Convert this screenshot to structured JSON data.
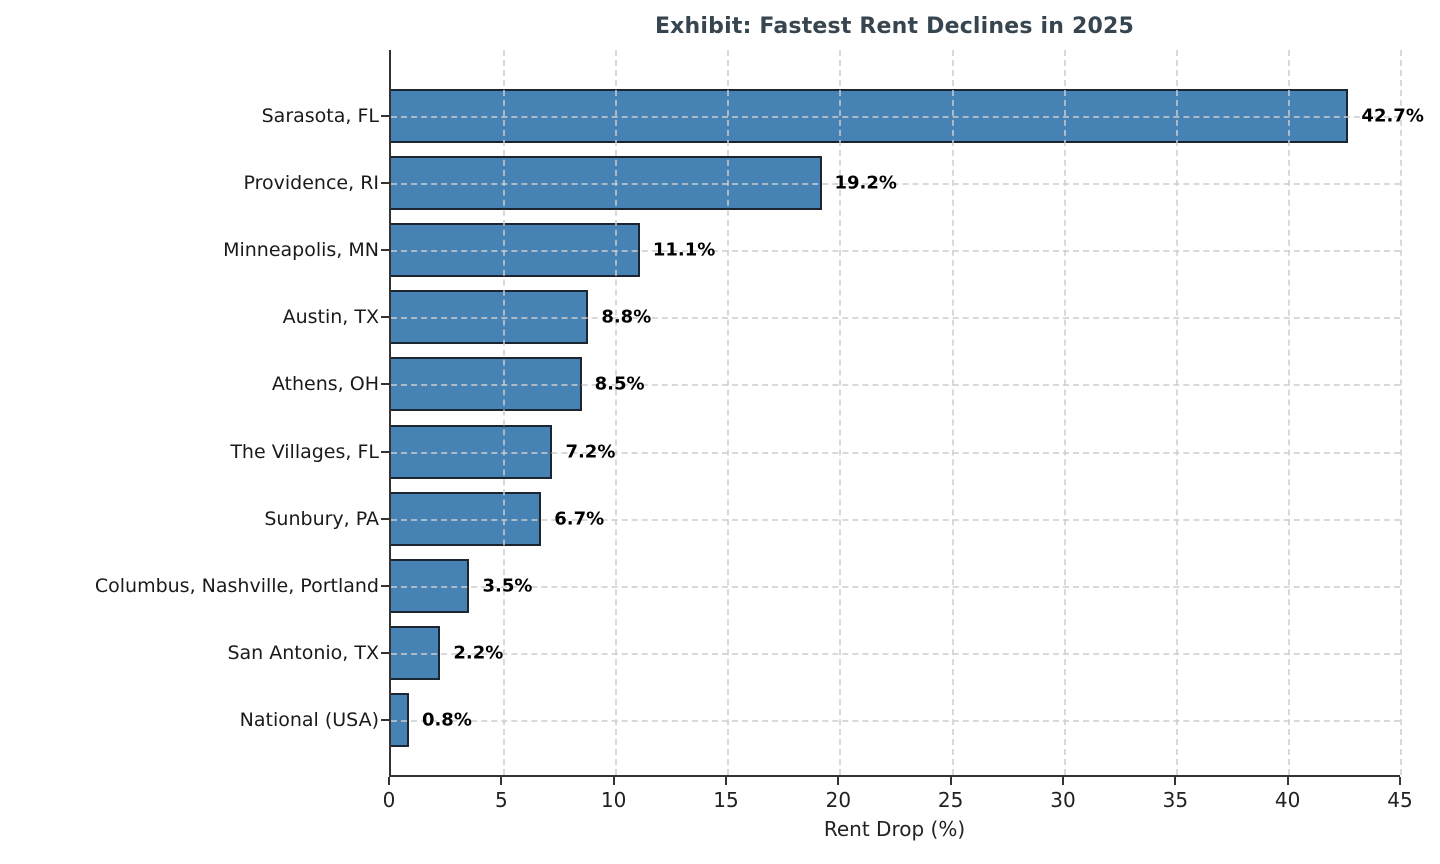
{
  "chart_data": {
    "type": "bar",
    "orientation": "horizontal",
    "title": "Exhibit: Fastest Rent Declines in 2025",
    "xlabel": "Rent Drop (%)",
    "categories": [
      "Sarasota, FL",
      "Providence, RI",
      "Minneapolis, MN",
      "Austin, TX",
      "Athens, OH",
      "The Villages, FL",
      "Sunbury, PA",
      "Columbus, Nashville, Portland",
      "San Antonio, TX",
      "National (USA)"
    ],
    "values": [
      42.7,
      19.2,
      11.1,
      8.8,
      8.5,
      7.2,
      6.7,
      3.5,
      2.2,
      0.8
    ],
    "value_labels": [
      "42.7%",
      "19.2%",
      "11.1%",
      "8.8%",
      "8.5%",
      "7.2%",
      "6.7%",
      "3.5%",
      "2.2%",
      "0.8%"
    ],
    "xticks": [
      0,
      5,
      10,
      15,
      20,
      25,
      30,
      35,
      40,
      45
    ],
    "xlim": [
      0,
      45
    ],
    "grid": "dashed-both-axes-above-bars",
    "legend": "none",
    "bar_color": "#4682b4",
    "bar_edge_color": "#1b2631",
    "title_color": "#36454f"
  }
}
